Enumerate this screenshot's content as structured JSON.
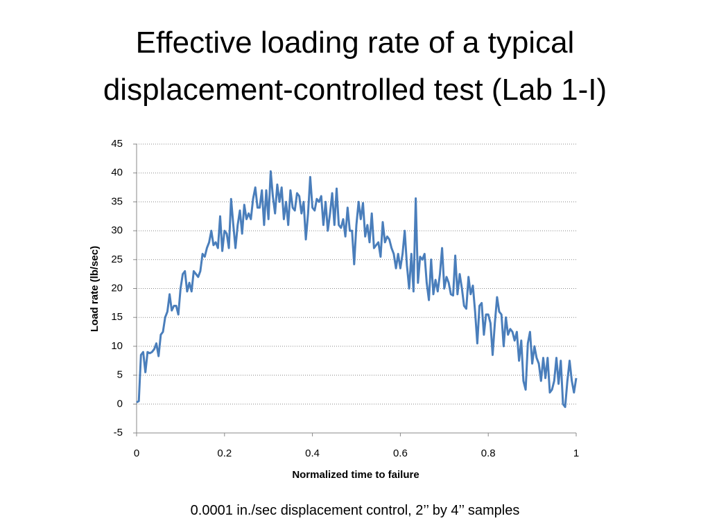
{
  "chart_data": {
    "type": "line",
    "title": "Effective loading rate of a typical displacement-controlled test (Lab 1-I)",
    "x_label": "Normalized time to failure",
    "y_label": "Load rate (lb/sec)",
    "note": "0.0001 in./sec displacement control, 2’’ by 4’’ samples",
    "color": "#4a7ebb",
    "grid": true,
    "xlim": [
      0,
      1
    ],
    "xticks": [
      0,
      0.2,
      0.4,
      0.6,
      0.8,
      1
    ],
    "ylim": [
      -5,
      45
    ],
    "yticks": [
      -5,
      0,
      5,
      10,
      15,
      20,
      25,
      30,
      35,
      40,
      45
    ],
    "x": [
      0,
      0.005,
      0.01,
      0.015,
      0.02,
      0.025,
      0.03,
      0.035,
      0.04,
      0.045,
      0.05,
      0.055,
      0.06,
      0.065,
      0.07,
      0.075,
      0.08,
      0.085,
      0.09,
      0.095,
      0.1,
      0.105,
      0.11,
      0.115,
      0.12,
      0.125,
      0.13,
      0.135,
      0.14,
      0.145,
      0.15,
      0.155,
      0.16,
      0.165,
      0.17,
      0.175,
      0.18,
      0.185,
      0.19,
      0.195,
      0.2,
      0.205,
      0.21,
      0.215,
      0.22,
      0.225,
      0.23,
      0.235,
      0.24,
      0.245,
      0.25,
      0.255,
      0.26,
      0.265,
      0.27,
      0.275,
      0.28,
      0.285,
      0.29,
      0.295,
      0.3,
      0.305,
      0.31,
      0.315,
      0.32,
      0.325,
      0.33,
      0.335,
      0.34,
      0.345,
      0.35,
      0.355,
      0.36,
      0.365,
      0.37,
      0.375,
      0.38,
      0.385,
      0.39,
      0.395,
      0.4,
      0.405,
      0.41,
      0.415,
      0.42,
      0.425,
      0.43,
      0.435,
      0.44,
      0.445,
      0.45,
      0.455,
      0.46,
      0.465,
      0.47,
      0.475,
      0.48,
      0.485,
      0.49,
      0.495,
      0.5,
      0.505,
      0.51,
      0.515,
      0.52,
      0.525,
      0.53,
      0.535,
      0.54,
      0.545,
      0.55,
      0.555,
      0.56,
      0.565,
      0.57,
      0.575,
      0.58,
      0.585,
      0.59,
      0.595,
      0.6,
      0.605,
      0.61,
      0.615,
      0.62,
      0.625,
      0.63,
      0.635,
      0.64,
      0.645,
      0.65,
      0.655,
      0.66,
      0.665,
      0.67,
      0.675,
      0.68,
      0.685,
      0.69,
      0.695,
      0.7,
      0.705,
      0.71,
      0.715,
      0.72,
      0.725,
      0.73,
      0.735,
      0.74,
      0.745,
      0.75,
      0.755,
      0.76,
      0.765,
      0.77,
      0.775,
      0.78,
      0.785,
      0.79,
      0.795,
      0.8,
      0.805,
      0.81,
      0.815,
      0.82,
      0.825,
      0.83,
      0.835,
      0.84,
      0.845,
      0.85,
      0.855,
      0.86,
      0.865,
      0.87,
      0.875,
      0.88,
      0.885,
      0.89,
      0.895,
      0.9,
      0.905,
      0.91,
      0.915,
      0.92,
      0.925,
      0.93,
      0.935,
      0.94,
      0.945,
      0.95,
      0.955,
      0.96,
      0.965,
      0.97,
      0.975,
      0.98,
      0.985,
      0.99,
      0.995,
      1
    ],
    "values": [
      0.3,
      0.5,
      8.5,
      9,
      5.5,
      9,
      8.8,
      9,
      9.5,
      10.5,
      8.3,
      12,
      12.5,
      15,
      16,
      19,
      16.2,
      17,
      17,
      15.5,
      20,
      22.5,
      23,
      19.5,
      21,
      19.5,
      23,
      22.5,
      22,
      23,
      26,
      25.5,
      27,
      28,
      30,
      27.5,
      28,
      27,
      32.5,
      26.5,
      30,
      29.5,
      27,
      35.5,
      31,
      27,
      31,
      33.5,
      29.5,
      34.5,
      32,
      33,
      32,
      35.5,
      37.5,
      34,
      34,
      37,
      31,
      37,
      32,
      40.3,
      36,
      33,
      38,
      35,
      37.5,
      32,
      35,
      31,
      37,
      34,
      33.5,
      36.5,
      36,
      33,
      35,
      28.5,
      33,
      39.3,
      34,
      33.5,
      35.5,
      35,
      36,
      31,
      35,
      30,
      33,
      36.5,
      31,
      37.3,
      31,
      30.5,
      32,
      29,
      34,
      30,
      30,
      24.2,
      31,
      35,
      32,
      34.8,
      29,
      31,
      28,
      33,
      27,
      27.5,
      28,
      25.5,
      31.5,
      28,
      29,
      28.5,
      27,
      26,
      23.5,
      26,
      23.5,
      26,
      30,
      24,
      20,
      26,
      19.5,
      35.6,
      21,
      25.5,
      25,
      26,
      21,
      18,
      25,
      19,
      21.5,
      19.5,
      22.5,
      27,
      20,
      22,
      21,
      19,
      18.8,
      25.7,
      19,
      22.5,
      20,
      17,
      16.5,
      22,
      19,
      20.5,
      16,
      10.5,
      17,
      17.5,
      12,
      15.5,
      15.5,
      14,
      8.5,
      14,
      18.5,
      16,
      15.5,
      10,
      15,
      12,
      13,
      12.5,
      11,
      12.5,
      7.5,
      11,
      4,
      2.5,
      10.5,
      12.5,
      7,
      10,
      8,
      7,
      4,
      8,
      4.5,
      8,
      2,
      2.5,
      4,
      8,
      3.5,
      7.5,
      0,
      -0.5,
      4,
      7.5,
      4,
      2,
      4.5
    ]
  }
}
